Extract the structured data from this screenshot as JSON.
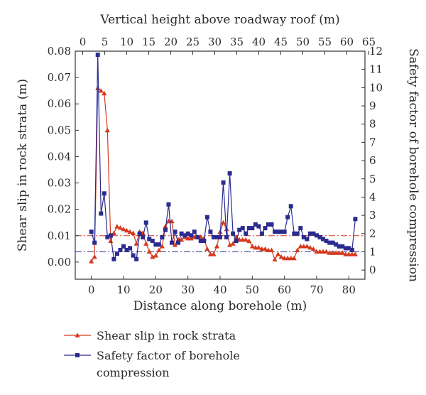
{
  "chart_data": {
    "type": "line",
    "title": "",
    "xlabel": "Distance along borehole (m)",
    "x2label": "Vertical height above roadway roof (m)",
    "ylabel": "Shear slip in rock strata (m)",
    "y2label": "Safety factor of borehole compression",
    "xlim": [
      -5,
      85
    ],
    "x2lim": [
      0,
      65
    ],
    "ylim": [
      -0.0065,
      0.08
    ],
    "y2lim": [
      -0.5,
      12
    ],
    "xticks": [
      "0",
      "10",
      "20",
      "30",
      "40",
      "50",
      "60",
      "70",
      "80"
    ],
    "x2ticks": [
      "0",
      "5",
      "10",
      "15",
      "20",
      "25",
      "30",
      "35",
      "40",
      "45",
      "50",
      "55",
      "60",
      "65"
    ],
    "yticks": [
      "0.00",
      "0.01",
      "0.02",
      "0.03",
      "0.04",
      "0.05",
      "0.06",
      "0.07",
      "0.08"
    ],
    "y2ticks": [
      "0",
      "1",
      "2",
      "3",
      "4",
      "5",
      "6",
      "7",
      "8",
      "9",
      "10",
      "11",
      "12"
    ],
    "reference_lines": [
      {
        "axis": "left",
        "value": 0.01,
        "color": "#d63a1e"
      },
      {
        "axis": "right",
        "value": 1,
        "color": "#2b2b8f"
      }
    ],
    "series": [
      {
        "name": "Shear slip in rock strata",
        "axis": "left",
        "color": "#d63a1e",
        "marker": "triangle",
        "x": [
          0,
          1,
          2,
          3,
          4,
          5,
          6,
          7,
          8,
          9,
          10,
          11,
          12,
          13,
          14,
          15,
          16,
          17,
          18,
          19,
          20,
          21,
          22,
          23,
          24,
          25,
          26,
          27,
          28,
          29,
          30,
          31,
          32,
          33,
          34,
          35,
          36,
          37,
          38,
          39,
          40,
          41,
          42,
          43,
          44,
          45,
          46,
          47,
          48,
          49,
          50,
          51,
          52,
          53,
          54,
          55,
          56,
          57,
          58,
          59,
          60,
          61,
          62,
          63,
          64,
          65,
          66,
          67,
          68,
          69,
          70,
          71,
          72,
          73,
          74,
          75,
          76,
          77,
          78,
          79,
          80,
          81,
          82
        ],
        "values": [
          0.0003,
          0.002,
          0.066,
          0.065,
          0.064,
          0.05,
          0.008,
          0.011,
          0.0135,
          0.013,
          0.0125,
          0.012,
          0.0115,
          0.011,
          0.007,
          0.0115,
          0.011,
          0.007,
          0.004,
          0.002,
          0.0025,
          0.0045,
          0.006,
          0.0135,
          0.0155,
          0.0155,
          0.0065,
          0.0085,
          0.0085,
          0.0095,
          0.009,
          0.009,
          0.0095,
          0.0095,
          0.0095,
          0.009,
          0.005,
          0.003,
          0.003,
          0.006,
          0.0115,
          0.015,
          0.0125,
          0.0065,
          0.007,
          0.0095,
          0.0085,
          0.0085,
          0.0085,
          0.008,
          0.006,
          0.0055,
          0.0055,
          0.005,
          0.005,
          0.0045,
          0.0045,
          0.001,
          0.003,
          0.002,
          0.0015,
          0.0015,
          0.0015,
          0.0015,
          0.0045,
          0.006,
          0.006,
          0.006,
          0.0055,
          0.005,
          0.004,
          0.004,
          0.004,
          0.004,
          0.0035,
          0.0035,
          0.0035,
          0.0035,
          0.0035,
          0.003,
          0.003,
          0.003,
          0.003
        ]
      },
      {
        "name": "Safety factor of borehole compression",
        "axis": "right",
        "color": "#2b2b8f",
        "marker": "square",
        "x": [
          0,
          1,
          2,
          3,
          4,
          5,
          6,
          7,
          8,
          9,
          10,
          11,
          12,
          13,
          14,
          15,
          16,
          17,
          18,
          19,
          20,
          21,
          22,
          23,
          24,
          25,
          26,
          27,
          28,
          29,
          30,
          31,
          32,
          33,
          34,
          35,
          36,
          37,
          38,
          39,
          40,
          41,
          42,
          43,
          44,
          45,
          46,
          47,
          48,
          49,
          50,
          51,
          52,
          53,
          54,
          55,
          56,
          57,
          58,
          59,
          60,
          61,
          62,
          63,
          64,
          65,
          66,
          67,
          68,
          69,
          70,
          71,
          72,
          73,
          74,
          75,
          76,
          77,
          78,
          79,
          80,
          81,
          82
        ],
        "values": [
          2.1,
          1.5,
          11.8,
          3.1,
          4.2,
          1.8,
          1.9,
          0.6,
          0.9,
          1.1,
          1.3,
          1.1,
          1.2,
          0.8,
          0.6,
          2.0,
          1.8,
          2.6,
          1.7,
          1.6,
          1.4,
          1.4,
          1.8,
          2.2,
          3.6,
          1.5,
          2.1,
          1.5,
          2.0,
          1.9,
          2.0,
          1.9,
          2.1,
          1.8,
          1.6,
          1.6,
          2.9,
          2.1,
          1.8,
          1.8,
          1.8,
          4.8,
          1.8,
          5.3,
          2.0,
          1.6,
          2.2,
          2.3,
          2.0,
          2.3,
          2.3,
          2.5,
          2.4,
          2.0,
          2.3,
          2.5,
          2.5,
          2.1,
          2.1,
          2.1,
          2.1,
          2.9,
          3.5,
          2.0,
          2.0,
          2.3,
          1.8,
          1.7,
          2.0,
          2.0,
          1.9,
          1.8,
          1.7,
          1.6,
          1.5,
          1.5,
          1.4,
          1.3,
          1.3,
          1.2,
          1.2,
          1.1,
          2.8
        ]
      }
    ],
    "legend": {
      "position": "bottom",
      "entries": [
        [
          "Shear slip in rock strata"
        ],
        [
          "Safety factor of borehole",
          "compression"
        ]
      ]
    },
    "grid": false
  }
}
